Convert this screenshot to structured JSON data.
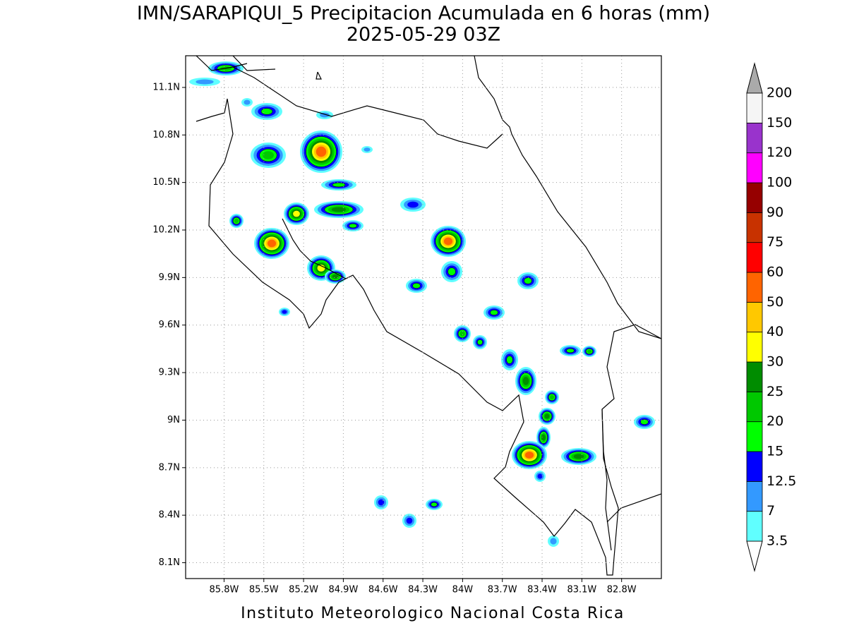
{
  "map": {
    "type": "contour-map",
    "title": "IMN/SARAPIQUI_5 Precipitacion Acumulada en 6 horas (mm)",
    "subtitle": "2025-05-29 03Z",
    "footer": "Instituto Meteorologico Nacional Costa Rica",
    "xlim": [
      -86.09,
      -82.5
    ],
    "ylim": [
      8.0,
      11.3
    ],
    "xticks": [
      {
        "value": -85.8,
        "label": "85.8W"
      },
      {
        "value": -85.5,
        "label": "85.5W"
      },
      {
        "value": -85.2,
        "label": "85.2W"
      },
      {
        "value": -84.9,
        "label": "84.9W"
      },
      {
        "value": -84.6,
        "label": "84.6W"
      },
      {
        "value": -84.3,
        "label": "84.3W"
      },
      {
        "value": -84.0,
        "label": "84W"
      },
      {
        "value": -83.7,
        "label": "83.7W"
      },
      {
        "value": -83.4,
        "label": "83.4W"
      },
      {
        "value": -83.1,
        "label": "83.1W"
      },
      {
        "value": -82.8,
        "label": "82.8W"
      }
    ],
    "yticks": [
      {
        "value": 8.1,
        "label": "8.1N"
      },
      {
        "value": 8.4,
        "label": "8.4N"
      },
      {
        "value": 8.7,
        "label": "8.7N"
      },
      {
        "value": 9.0,
        "label": "9N"
      },
      {
        "value": 9.3,
        "label": "9.3N"
      },
      {
        "value": 9.6,
        "label": "9.6N"
      },
      {
        "value": 9.9,
        "label": "9.9N"
      },
      {
        "value": 10.2,
        "label": "10.2N"
      },
      {
        "value": 10.5,
        "label": "10.5N"
      },
      {
        "value": 10.8,
        "label": "10.8N"
      },
      {
        "value": 11.1,
        "label": "11.1N"
      }
    ],
    "grid": true,
    "colorbar": {
      "levels": [
        3.5,
        7,
        12.5,
        15,
        20,
        25,
        30,
        40,
        50,
        60,
        75,
        90,
        100,
        120,
        150,
        200
      ],
      "colors": [
        "#60ffff",
        "#3399ff",
        "#0000ff",
        "#00ff00",
        "#00c800",
        "#008c00",
        "#ffff00",
        "#ffc800",
        "#ff6400",
        "#ff0000",
        "#c83200",
        "#960000",
        "#ff00ff",
        "#9933cc",
        "#f5f5f5"
      ],
      "under_color": "#ffffff",
      "over_color": "#aaaaaa"
    }
  }
}
